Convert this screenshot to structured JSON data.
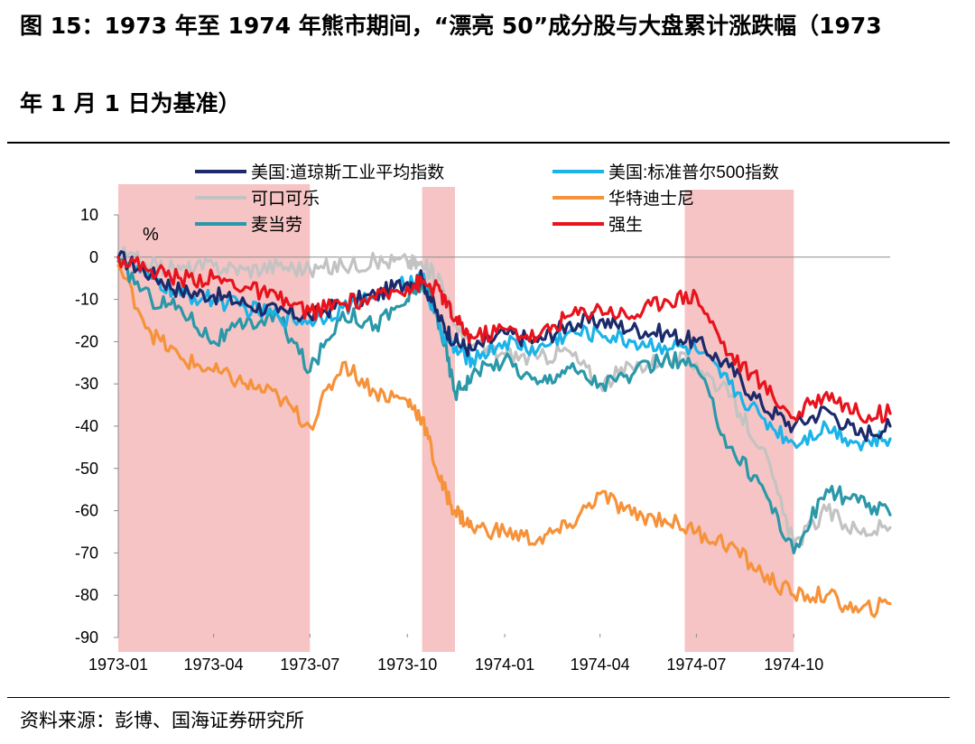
{
  "figure": {
    "title_line1": "图 15：1973 年至 1974 年熊市期间，“漂亮 50”成分股与大盘累计涨跌幅（1973",
    "title_line2": "年 1 月 1 日为基准）",
    "source": "资料来源：彭博、国海证券研究所"
  },
  "chart_data": {
    "type": "line",
    "ylabel": "%",
    "ylim": [
      -90,
      10
    ],
    "yticks": [
      10,
      0,
      -10,
      -20,
      -30,
      -40,
      -50,
      -60,
      -70,
      -80,
      -90
    ],
    "xlim": [
      "1973-01-01",
      "1974-12-31"
    ],
    "xticks": [
      "1973-01",
      "1973-04",
      "1973-07",
      "1973-10",
      "1974-01",
      "1974-04",
      "1974-07",
      "1974-10"
    ],
    "legend_position": "top",
    "shaded_periods": [
      [
        "1973-01-01",
        "1973-07-01"
      ],
      [
        "1973-10-15",
        "1973-11-15"
      ],
      [
        "1974-06-20",
        "1974-10-01"
      ]
    ],
    "shade_color": "#f6c4c4",
    "x": [
      "1973-01-01",
      "1973-02-01",
      "1973-03-01",
      "1973-04-01",
      "1973-05-01",
      "1973-06-01",
      "1973-07-01",
      "1973-08-01",
      "1973-09-01",
      "1973-10-01",
      "1973-10-15",
      "1973-11-01",
      "1973-11-15",
      "1973-12-01",
      "1974-01-01",
      "1974-02-01",
      "1974-03-01",
      "1974-04-01",
      "1974-05-01",
      "1974-06-01",
      "1974-07-01",
      "1974-08-01",
      "1974-09-01",
      "1974-10-01",
      "1974-11-01",
      "1974-12-01",
      "1974-12-31"
    ],
    "series": [
      {
        "name": "美国:道琼斯工业平均指数",
        "color": "#1c2a6b",
        "values": [
          0,
          -4,
          -8,
          -9,
          -11,
          -13,
          -14,
          -11,
          -9,
          -6,
          -5,
          -15,
          -20,
          -22,
          -18,
          -20,
          -16,
          -15,
          -17,
          -18,
          -20,
          -26,
          -35,
          -40,
          -36,
          -42,
          -40
        ]
      },
      {
        "name": "美国:标准普尔500指数",
        "color": "#1cb3e8",
        "values": [
          0,
          -5,
          -9,
          -10,
          -12,
          -14,
          -15,
          -12,
          -9,
          -6,
          -5,
          -17,
          -22,
          -24,
          -20,
          -22,
          -18,
          -18,
          -20,
          -21,
          -22,
          -30,
          -38,
          -44,
          -40,
          -44,
          -43
        ]
      },
      {
        "name": "可口可乐",
        "color": "#c3c3c3",
        "values": [
          1,
          -2,
          -3,
          -2,
          -3,
          -2,
          -3,
          -2,
          -1,
          -1,
          -2,
          -5,
          -16,
          -21,
          -23,
          -24,
          -22,
          -30,
          -26,
          -24,
          -25,
          -33,
          -45,
          -68,
          -60,
          -65,
          -64
        ]
      },
      {
        "name": "华特迪士尼",
        "color": "#f6923a",
        "values": [
          -2,
          -18,
          -24,
          -27,
          -30,
          -33,
          -40,
          -25,
          -32,
          -34,
          -38,
          -53,
          -60,
          -64,
          -65,
          -67,
          -64,
          -56,
          -61,
          -62,
          -65,
          -68,
          -75,
          -80,
          -80,
          -84,
          -82
        ]
      },
      {
        "name": "麦当劳",
        "color": "#2a98a8",
        "values": [
          -1,
          -10,
          -12,
          -20,
          -16,
          -14,
          -27,
          -13,
          -16,
          -10,
          -6,
          -16,
          -32,
          -28,
          -24,
          -30,
          -26,
          -30,
          -28,
          -24,
          -26,
          -45,
          -54,
          -70,
          -55,
          -58,
          -61
        ]
      },
      {
        "name": "强生",
        "color": "#e8131c",
        "values": [
          0,
          -3,
          -5,
          -5,
          -7,
          -10,
          -13,
          -11,
          -10,
          -7,
          -6,
          -8,
          -15,
          -19,
          -17,
          -19,
          -14,
          -12,
          -14,
          -10,
          -9,
          -23,
          -30,
          -38,
          -32,
          -37,
          -37
        ]
      }
    ]
  }
}
